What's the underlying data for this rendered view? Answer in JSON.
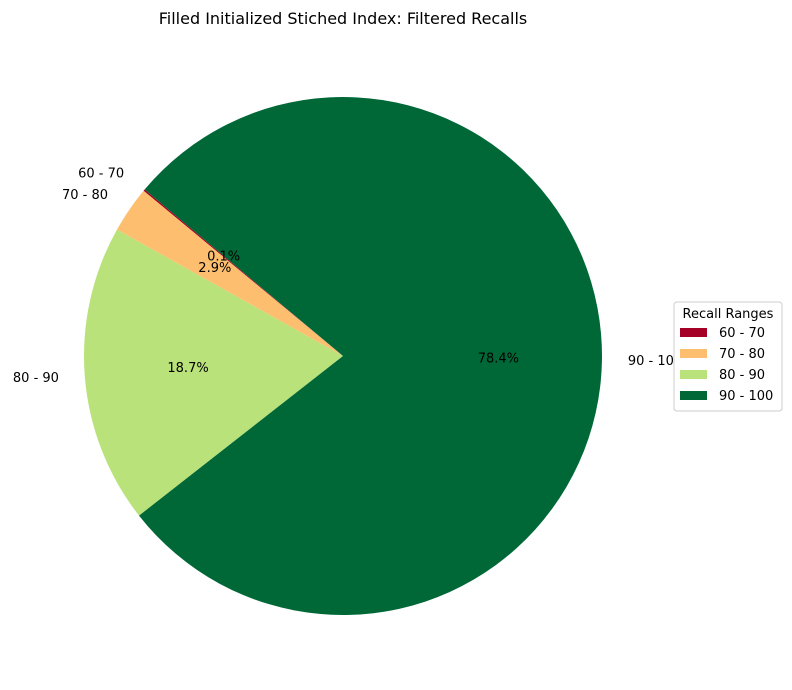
{
  "chart_data": {
    "type": "pie",
    "title": "Filled Initialized Stiched Index: Filtered Recalls",
    "categories": [
      "60 - 70",
      "70 - 80",
      "80 - 90",
      "90 - 100"
    ],
    "values": [
      0.1,
      2.9,
      18.7,
      78.4
    ],
    "percent_labels": [
      "0.1%",
      "2.9%",
      "18.7%",
      "78.4%"
    ],
    "colors": [
      "#a50026",
      "#fdbf6f",
      "#bae27a",
      "#006837"
    ],
    "start_angle_deg": 140,
    "direction": "counterclockwise",
    "legend": {
      "title": "Recall Ranges",
      "placement": "center-right",
      "entries": [
        "60 - 70",
        "70 - 80",
        "80 - 90",
        "90 - 100"
      ]
    }
  }
}
